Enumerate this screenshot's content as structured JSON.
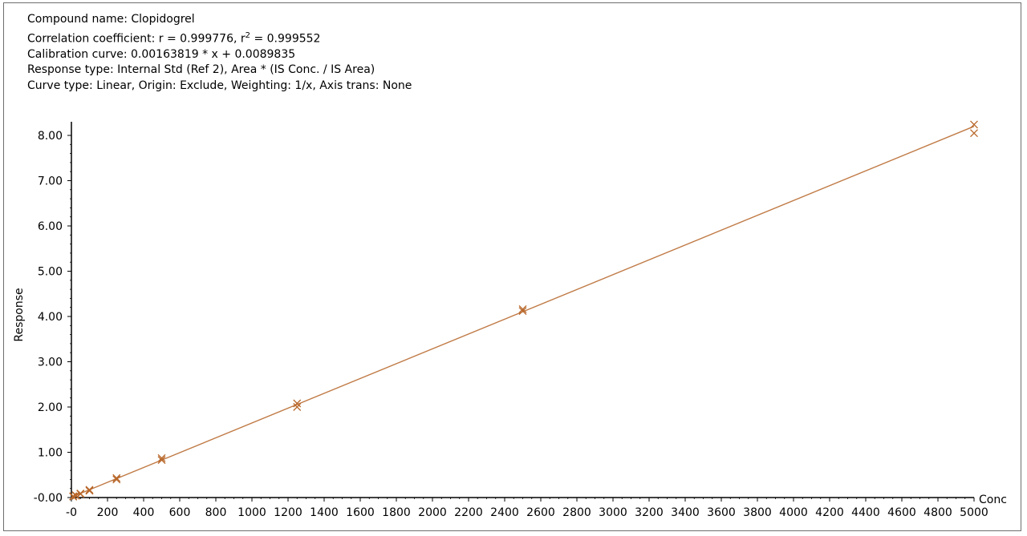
{
  "header": {
    "compound": "Compound name: Clopidogrel",
    "correlation_prefix": "Correlation coefficient: r = 0.999776, r",
    "correlation_sup": "2",
    "correlation_suffix": " = 0.999552",
    "calibration": "Calibration curve: 0.00163819 * x + 0.0089835",
    "response_type": "Response type: Internal Std (Ref 2), Area * (IS Conc. / IS Area)",
    "curve_type": "Curve type: Linear, Origin: Exclude, Weighting: 1/x, Axis trans: None"
  },
  "chart_data": {
    "type": "scatter",
    "title": "",
    "xlabel": "Conc",
    "ylabel": "Response",
    "xlim": [
      0,
      5000
    ],
    "ylim": [
      0,
      8.3
    ],
    "x_ticks": [
      "-0",
      "200",
      "400",
      "600",
      "800",
      "1000",
      "1200",
      "1400",
      "1600",
      "1800",
      "2000",
      "2200",
      "2400",
      "2600",
      "2800",
      "3000",
      "3200",
      "3400",
      "3600",
      "3800",
      "4000",
      "4200",
      "4400",
      "4600",
      "4800",
      "5000"
    ],
    "y_ticks": [
      "-0.00",
      "1.00",
      "2.00",
      "3.00",
      "4.00",
      "5.00",
      "6.00",
      "7.00",
      "8.00"
    ],
    "marker": "x",
    "color": "#b8672a",
    "line_color": "#c07a45",
    "grid": false,
    "fit_line": {
      "slope": 0.00163819,
      "intercept": 0.0089835,
      "x_range": [
        0,
        5000
      ]
    },
    "points": [
      {
        "x": 10,
        "y": 0.02
      },
      {
        "x": 10,
        "y": 0.03
      },
      {
        "x": 25,
        "y": 0.05
      },
      {
        "x": 25,
        "y": 0.04
      },
      {
        "x": 50,
        "y": 0.09
      },
      {
        "x": 50,
        "y": 0.08
      },
      {
        "x": 100,
        "y": 0.17
      },
      {
        "x": 100,
        "y": 0.15
      },
      {
        "x": 250,
        "y": 0.43
      },
      {
        "x": 250,
        "y": 0.4
      },
      {
        "x": 500,
        "y": 0.87
      },
      {
        "x": 500,
        "y": 0.83
      },
      {
        "x": 1250,
        "y": 2.08
      },
      {
        "x": 1250,
        "y": 2.0
      },
      {
        "x": 2500,
        "y": 4.16
      },
      {
        "x": 2500,
        "y": 4.12
      },
      {
        "x": 5000,
        "y": 8.24
      },
      {
        "x": 5000,
        "y": 8.05
      }
    ]
  }
}
